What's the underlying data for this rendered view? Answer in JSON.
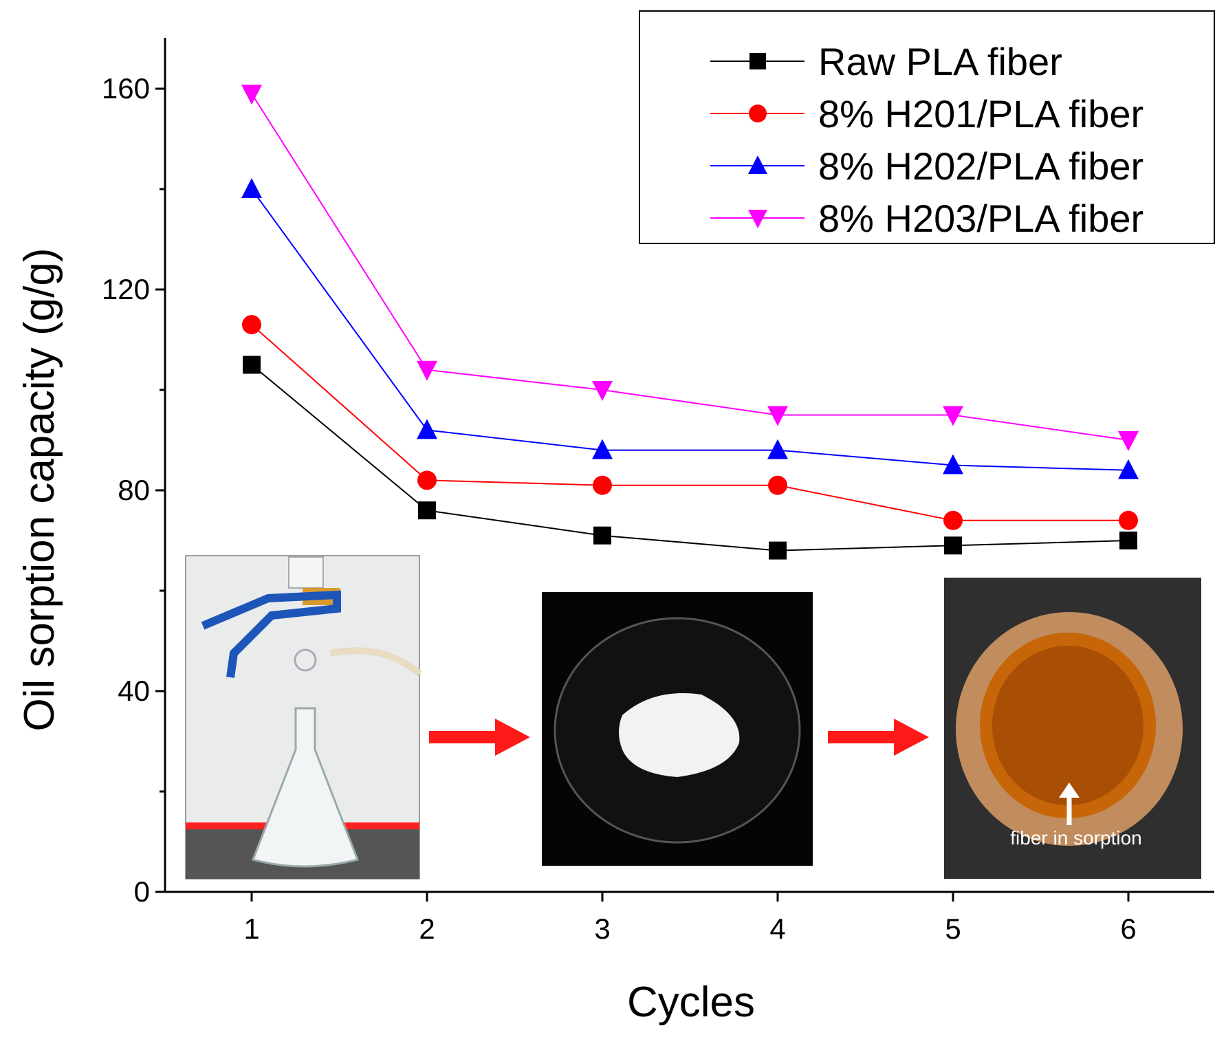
{
  "chart_data": {
    "type": "line",
    "title": "",
    "xlabel": "Cycles",
    "ylabel": "Oil sorption capacity (g/g)",
    "x": [
      1,
      2,
      3,
      4,
      5,
      6
    ],
    "xticks": [
      "1",
      "2",
      "3",
      "4",
      "5",
      "6"
    ],
    "yticks": [
      "0",
      "40",
      "80",
      "120",
      "160"
    ],
    "ylim": [
      0,
      170
    ],
    "xlim": [
      0.4,
      6.5
    ],
    "grid": false,
    "legend_position": "top-right",
    "series": [
      {
        "name": "Raw PLA fiber",
        "color": "#000000",
        "marker": "square",
        "values": [
          105,
          76,
          71,
          68,
          69,
          70
        ]
      },
      {
        "name": "8% H201/PLA fiber",
        "color": "#ff0000",
        "marker": "circle",
        "values": [
          113,
          82,
          81,
          81,
          74,
          74
        ]
      },
      {
        "name": "8% H202/PLA fiber",
        "color": "#0000ff",
        "marker": "triangle-up",
        "values": [
          140,
          92,
          88,
          88,
          85,
          84
        ]
      },
      {
        "name": "8% H203/PLA fiber",
        "color": "#ff00ff",
        "marker": "triangle-down",
        "values": [
          159,
          104,
          100,
          95,
          95,
          90
        ]
      }
    ],
    "annotations": {
      "photo_caption": "fiber in sorption"
    }
  }
}
